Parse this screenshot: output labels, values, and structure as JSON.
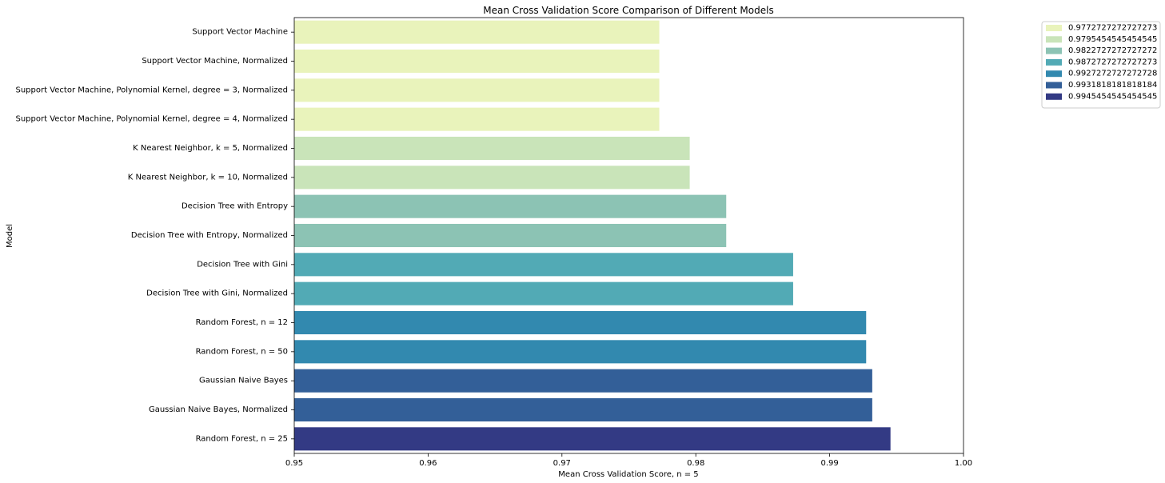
{
  "chart_data": {
    "type": "bar",
    "orientation": "horizontal",
    "title": "Mean Cross Validation Score Comparison of Different Models",
    "xlabel": "Mean Cross Validation Score, n = 5",
    "ylabel": "Model",
    "xlim": [
      0.95,
      1.0
    ],
    "xticks": [
      0.95,
      0.96,
      0.97,
      0.98,
      0.99,
      1.0
    ],
    "xtick_labels": [
      "0.95",
      "0.96",
      "0.97",
      "0.98",
      "0.99",
      "1.00"
    ],
    "grid": false,
    "legend_position": "outside-top-right",
    "categories": [
      "Support Vector Machine",
      "Support Vector Machine, Normalized",
      "Support Vector Machine, Polynomial Kernel, degree = 3, Normalized",
      "Support Vector Machine, Polynomial Kernel, degree = 4, Normalized",
      "K Nearest Neighbor, k = 5, Normalized",
      "K Nearest Neighbor, k = 10, Normalized",
      "Decision Tree with Entropy",
      "Decision Tree with Entropy, Normalized",
      "Decision Tree with Gini",
      "Decision Tree with Gini, Normalized",
      "Random Forest, n = 12",
      "Random Forest, n = 50",
      "Gaussian Naive Bayes",
      "Gaussian Naive Bayes, Normalized",
      "Random Forest, n = 25"
    ],
    "values": [
      0.9772727272727273,
      0.9772727272727273,
      0.9772727272727273,
      0.9772727272727273,
      0.9795454545454545,
      0.9795454545454545,
      0.9822727272727272,
      0.9822727272727272,
      0.9872727272727273,
      0.9872727272727273,
      0.9927272727272728,
      0.9927272727272728,
      0.9931818181818184,
      0.9931818181818184,
      0.9945454545454545
    ],
    "bar_colors": [
      "#e9f3bb",
      "#e9f3bb",
      "#e9f3bb",
      "#e9f3bb",
      "#c9e4b9",
      "#c9e4b9",
      "#8cc3b4",
      "#8cc3b4",
      "#52aab5",
      "#52aab5",
      "#3289af",
      "#3289af",
      "#335f98",
      "#335f98",
      "#333a84"
    ],
    "legend": [
      {
        "label": "0.9772727272727273",
        "color": "#e9f3bb"
      },
      {
        "label": "0.9795454545454545",
        "color": "#c9e4b9"
      },
      {
        "label": "0.9822727272727272",
        "color": "#8cc3b4"
      },
      {
        "label": "0.9872727272727273",
        "color": "#52aab5"
      },
      {
        "label": "0.9927272727272728",
        "color": "#3289af"
      },
      {
        "label": "0.9931818181818184",
        "color": "#335f98"
      },
      {
        "label": "0.9945454545454545",
        "color": "#333a84"
      }
    ]
  }
}
